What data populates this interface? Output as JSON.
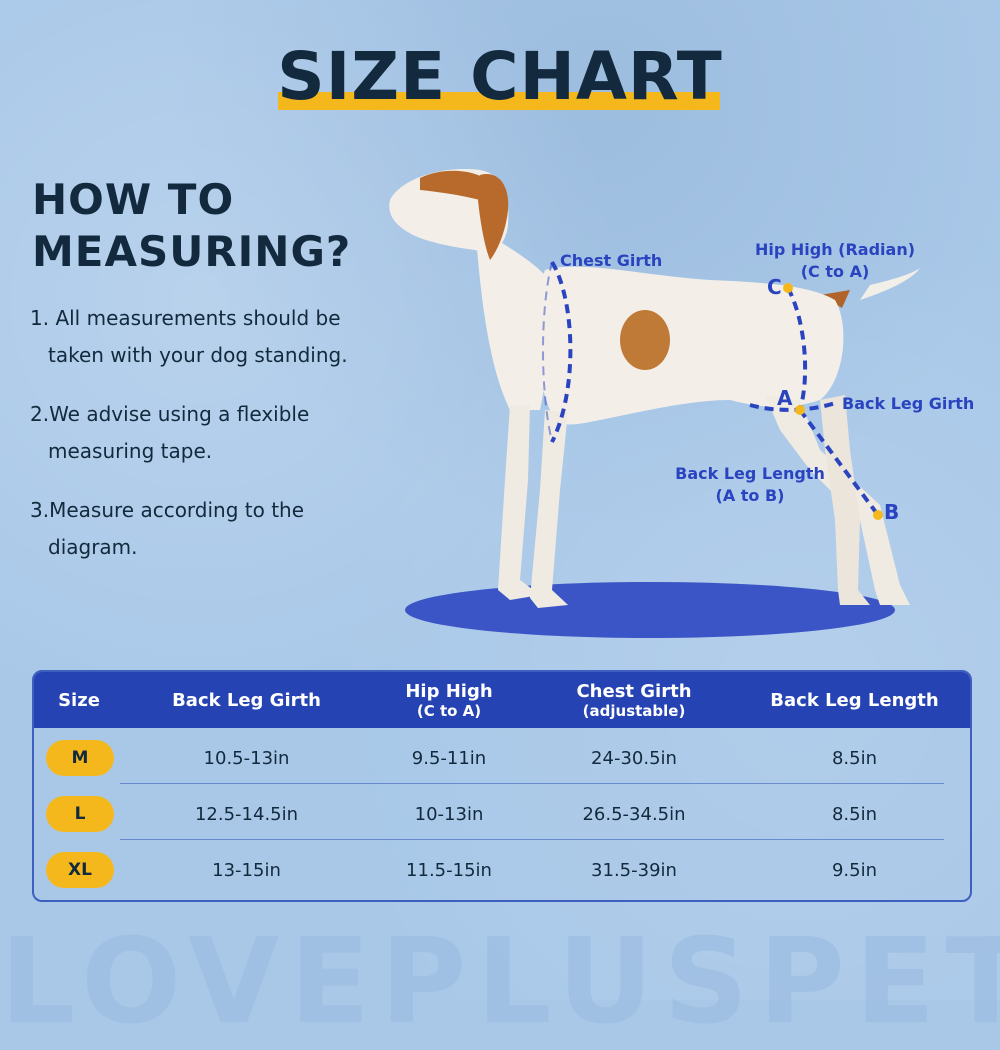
{
  "title": "SIZE CHART",
  "howto": {
    "line1": "HOW TO",
    "line2": "MEASURING?"
  },
  "steps": [
    "1. All measurements should be taken with your dog standing.",
    "2.We advise using a flexible measuring tape.",
    "3.Measure according to the diagram."
  ],
  "diagram": {
    "chest_girth": "Chest Girth",
    "hip_high_line1": "Hip High (Radian)",
    "hip_high_line2": "(C to A)",
    "back_leg_girth": "Back Leg Girth",
    "back_leg_length_line1": "Back Leg Length",
    "back_leg_length_line2": "(A to B)",
    "point_a": "A",
    "point_b": "B",
    "point_c": "C"
  },
  "table": {
    "headers": {
      "size": "Size",
      "back_leg_girth": "Back Leg Girth",
      "hip_high": "Hip High",
      "hip_high_sub": "(C to A)",
      "chest_girth": "Chest Girth",
      "chest_girth_sub": "(adjustable)",
      "back_leg_length": "Back Leg Length"
    },
    "rows": [
      {
        "size": "M",
        "back_leg_girth": "10.5-13in",
        "hip_high": "9.5-11in",
        "chest_girth": "24-30.5in",
        "back_leg_length": "8.5in"
      },
      {
        "size": "L",
        "back_leg_girth": "12.5-14.5in",
        "hip_high": "10-13in",
        "chest_girth": "26.5-34.5in",
        "back_leg_length": "8.5in"
      },
      {
        "size": "XL",
        "back_leg_girth": "13-15in",
        "hip_high": "11.5-15in",
        "chest_girth": "31.5-39in",
        "back_leg_length": "9.5in"
      }
    ]
  },
  "brand": "LOVEPLUSPET",
  "colors": {
    "navy": "#13293d",
    "accent_yellow": "#f5b81c",
    "header_blue": "#2643b3",
    "label_blue": "#2a44c0",
    "background": "#a9c8e8"
  }
}
